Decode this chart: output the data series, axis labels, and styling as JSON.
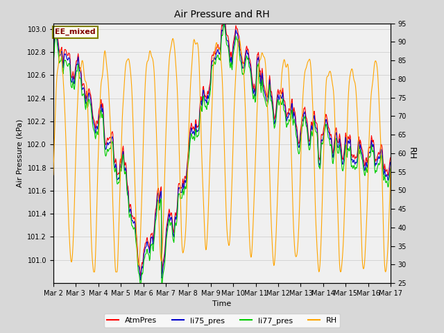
{
  "title": "Air Pressure and RH",
  "xlabel": "Time",
  "ylabel_left": "Air Pressure (kPa)",
  "ylabel_right": "RH",
  "ylim_left": [
    100.8,
    103.05
  ],
  "ylim_right": [
    25,
    95
  ],
  "yticks_left": [
    101.0,
    101.2,
    101.4,
    101.6,
    101.8,
    102.0,
    102.2,
    102.4,
    102.6,
    102.8,
    103.0
  ],
  "yticks_right": [
    25,
    30,
    35,
    40,
    45,
    50,
    55,
    60,
    65,
    70,
    75,
    80,
    85,
    90,
    95
  ],
  "xtick_labels": [
    "Mar 2",
    "Mar 3",
    "Mar 4",
    "Mar 5",
    "Mar 6",
    "Mar 7",
    "Mar 8",
    "Mar 9",
    "Mar 10",
    "Mar 11",
    "Mar 12",
    "Mar 13",
    "Mar 14",
    "Mar 15",
    "Mar 16",
    "Mar 17"
  ],
  "annotation_text": "EE_mixed",
  "annotation_color": "#800000",
  "annotation_bg": "#fffff0",
  "annotation_border": "#808000",
  "line_colors": {
    "AtmPres": "#ff0000",
    "li75_pres": "#0000cc",
    "li77_pres": "#00cc00",
    "RH": "#ffa500"
  },
  "line_widths": {
    "AtmPres": 0.8,
    "li75_pres": 0.8,
    "li77_pres": 0.8,
    "RH": 0.8
  },
  "legend_entries": [
    "AtmPres",
    "li75_pres",
    "li77_pres",
    "RH"
  ],
  "grid_color": "#d0d0d0",
  "bg_color": "#d8d8d8",
  "plot_bg": "#f0f0f0",
  "n_points": 720,
  "seed": 42
}
